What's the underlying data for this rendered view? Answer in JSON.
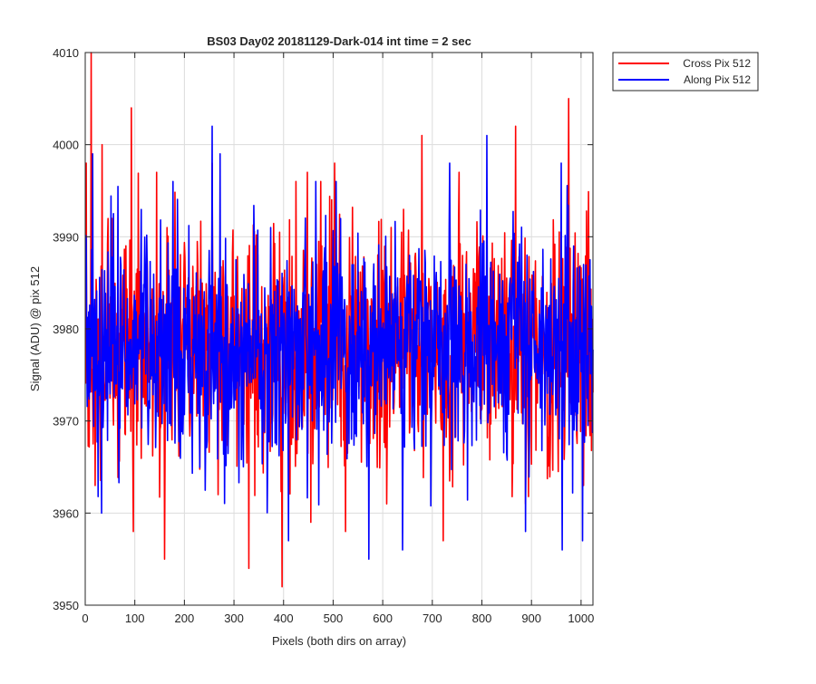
{
  "chart_data": {
    "type": "line",
    "title": "BS03 Day02 20181129-Dark-014 int time = 2 sec",
    "xlabel": "Pixels (both dirs on array)",
    "ylabel": "Signal (ADU) @ pix 512",
    "xlim": [
      0,
      1024
    ],
    "ylim": [
      3950,
      4010
    ],
    "xticks": [
      0,
      100,
      200,
      300,
      400,
      500,
      600,
      700,
      800,
      900,
      1000
    ],
    "yticks": [
      3950,
      3960,
      3970,
      3980,
      3990,
      4000,
      4010
    ],
    "grid": true,
    "legend_position": "outside-top-right",
    "series": [
      {
        "name": "Cross Pix 512",
        "color": "#ff0000",
        "x_start": 1,
        "x_end": 1024,
        "noise_mean": 3978,
        "noise_band": [
          3963,
          3993
        ],
        "peaks": [
          {
            "x": 2,
            "y": 3998
          },
          {
            "x": 12,
            "y": 4010
          },
          {
            "x": 34,
            "y": 4000
          },
          {
            "x": 93,
            "y": 4004
          },
          {
            "x": 165,
            "y": 3991
          },
          {
            "x": 256,
            "y": 3998
          },
          {
            "x": 425,
            "y": 3996
          },
          {
            "x": 475,
            "y": 3996
          },
          {
            "x": 503,
            "y": 3998
          },
          {
            "x": 608,
            "y": 3998
          },
          {
            "x": 679,
            "y": 4001
          },
          {
            "x": 868,
            "y": 4002
          },
          {
            "x": 975,
            "y": 4005
          }
        ],
        "troughs": [
          {
            "x": 20,
            "y": 3963
          },
          {
            "x": 97,
            "y": 3958
          },
          {
            "x": 160,
            "y": 3955
          },
          {
            "x": 268,
            "y": 3962
          },
          {
            "x": 330,
            "y": 3954
          },
          {
            "x": 397,
            "y": 3952
          },
          {
            "x": 455,
            "y": 3959
          },
          {
            "x": 525,
            "y": 3958
          },
          {
            "x": 608,
            "y": 3961
          },
          {
            "x": 722,
            "y": 3957
          },
          {
            "x": 888,
            "y": 3961
          },
          {
            "x": 1005,
            "y": 3963
          }
        ]
      },
      {
        "name": "Along Pix 512",
        "color": "#0000ff",
        "x_start": 1,
        "x_end": 1024,
        "noise_mean": 3978,
        "noise_band": [
          3964,
          3992
        ],
        "peaks": [
          {
            "x": 15,
            "y": 3999
          },
          {
            "x": 256,
            "y": 4002
          },
          {
            "x": 272,
            "y": 3999
          },
          {
            "x": 465,
            "y": 3996
          },
          {
            "x": 735,
            "y": 3998
          },
          {
            "x": 810,
            "y": 4001
          },
          {
            "x": 960,
            "y": 3998
          }
        ],
        "troughs": [
          {
            "x": 33,
            "y": 3960
          },
          {
            "x": 410,
            "y": 3957
          },
          {
            "x": 572,
            "y": 3955
          },
          {
            "x": 640,
            "y": 3956
          },
          {
            "x": 888,
            "y": 3958
          },
          {
            "x": 962,
            "y": 3956
          },
          {
            "x": 1003,
            "y": 3957
          }
        ]
      }
    ]
  }
}
